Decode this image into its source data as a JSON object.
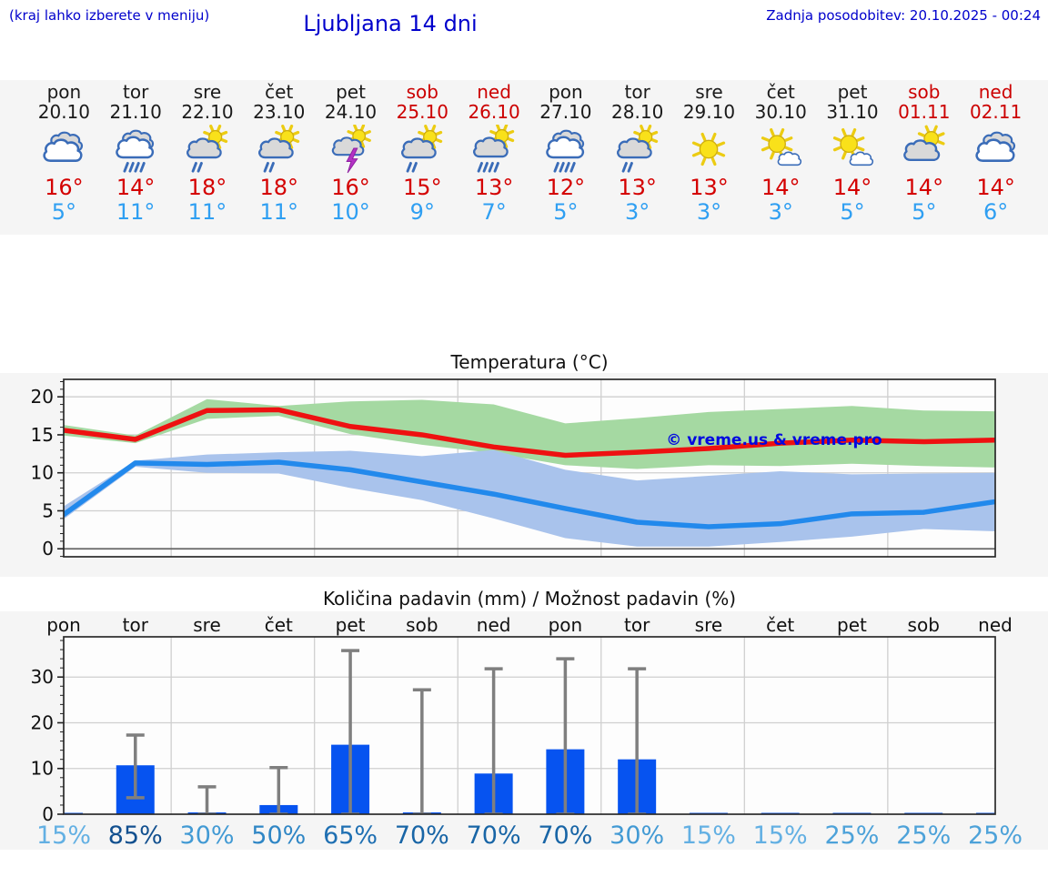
{
  "header": {
    "note_left": "(kraj lahko izberete v meniju)",
    "title": "Ljubljana 14 dni",
    "last_update": "Zadnja posodobitev: 20.10.2025 - 00:24"
  },
  "colors": {
    "header_blue": "#0000cc",
    "weekend_red": "#cc0000",
    "tmax_red": "#d40000",
    "tmin_blue": "#2f9ff2",
    "line_red": "#ee1111",
    "line_blue": "#2289ec",
    "band_green": "#a5d9a2",
    "band_blue": "#a9c3ec",
    "bar_blue": "#0653f0",
    "whisker_gray": "#7f7f7f",
    "watermark_blue": "#0008e0"
  },
  "days": [
    {
      "name": "pon",
      "date": "20.10",
      "weekend": false,
      "icon": "cloudy",
      "tmax": "16°",
      "tmin": "5°"
    },
    {
      "name": "tor",
      "date": "21.10",
      "weekend": false,
      "icon": "rain",
      "tmax": "14°",
      "tmin": "11°"
    },
    {
      "name": "sre",
      "date": "22.10",
      "weekend": false,
      "icon": "sun-cloud-light-rain",
      "tmax": "18°",
      "tmin": "11°"
    },
    {
      "name": "čet",
      "date": "23.10",
      "weekend": false,
      "icon": "sun-cloud-light-rain",
      "tmax": "18°",
      "tmin": "11°"
    },
    {
      "name": "pet",
      "date": "24.10",
      "weekend": false,
      "icon": "sun-cloud-thunder",
      "tmax": "16°",
      "tmin": "10°"
    },
    {
      "name": "sob",
      "date": "25.10",
      "weekend": true,
      "icon": "sun-cloud-light-rain",
      "tmax": "15°",
      "tmin": "9°"
    },
    {
      "name": "ned",
      "date": "26.10",
      "weekend": true,
      "icon": "sun-cloud-rain",
      "tmax": "13°",
      "tmin": "7°"
    },
    {
      "name": "pon",
      "date": "27.10",
      "weekend": false,
      "icon": "rain",
      "tmax": "12°",
      "tmin": "5°"
    },
    {
      "name": "tor",
      "date": "28.10",
      "weekend": false,
      "icon": "sun-cloud-light-rain",
      "tmax": "13°",
      "tmin": "3°"
    },
    {
      "name": "sre",
      "date": "29.10",
      "weekend": false,
      "icon": "sunny",
      "tmax": "13°",
      "tmin": "3°"
    },
    {
      "name": "čet",
      "date": "30.10",
      "weekend": false,
      "icon": "sun-small-cloud",
      "tmax": "14°",
      "tmin": "3°"
    },
    {
      "name": "pet",
      "date": "31.10",
      "weekend": false,
      "icon": "sun-small-cloud",
      "tmax": "14°",
      "tmin": "5°"
    },
    {
      "name": "sob",
      "date": "01.11",
      "weekend": true,
      "icon": "sun-cloud",
      "tmax": "14°",
      "tmin": "5°"
    },
    {
      "name": "ned",
      "date": "02.11",
      "weekend": true,
      "icon": "cloudy",
      "tmax": "14°",
      "tmin": "6°"
    }
  ],
  "chart_data": [
    {
      "type": "line",
      "title": "Temperatura (°C)",
      "watermark": "© vreme.us & vreme.pro",
      "ylabel": "",
      "ylim": [
        -1.05,
        22.3
      ],
      "yticks": [
        0,
        5,
        10,
        15,
        20
      ],
      "x_days": 14,
      "grid": true,
      "series": [
        {
          "name": "max temperature",
          "color": "#ee1111",
          "band_color": "#a5d9a2",
          "values": [
            15.6,
            14.4,
            18.2,
            18.3,
            16.1,
            15.0,
            13.4,
            12.3,
            12.7,
            13.2,
            13.9,
            14.3,
            14.1,
            14.3
          ],
          "band_hi": [
            16.3,
            14.9,
            19.7,
            18.8,
            19.4,
            19.6,
            19.0,
            16.5,
            17.2,
            18.0,
            18.4,
            18.8,
            18.2,
            18.1
          ],
          "band_lo": [
            14.9,
            13.9,
            17.1,
            17.5,
            15.1,
            13.7,
            12.6,
            11.0,
            10.5,
            11.0,
            10.9,
            11.2,
            10.9,
            10.7
          ]
        },
        {
          "name": "min temperature",
          "color": "#2289ec",
          "band_color": "#a9c3ec",
          "values": [
            4.5,
            11.3,
            11.1,
            11.4,
            10.4,
            8.8,
            7.2,
            5.3,
            3.5,
            2.9,
            3.3,
            4.6,
            4.8,
            6.2
          ],
          "band_hi": [
            5.6,
            11.6,
            12.4,
            12.7,
            12.9,
            12.2,
            13.0,
            10.4,
            9.0,
            9.6,
            10.2,
            9.8,
            9.9,
            10.0
          ],
          "band_lo": [
            3.9,
            10.8,
            10.0,
            9.9,
            8.0,
            6.4,
            4.0,
            1.4,
            0.3,
            0.3,
            0.9,
            1.6,
            2.6,
            2.3
          ]
        }
      ]
    },
    {
      "type": "bar",
      "title": "Količina padavin (mm) / Možnost padavin (%)",
      "categories": [
        "pon",
        "tor",
        "sre",
        "čet",
        "pet",
        "sob",
        "ned",
        "pon",
        "tor",
        "sre",
        "čet",
        "pet",
        "sob",
        "ned"
      ],
      "values": [
        0.1,
        10.7,
        0.4,
        2.0,
        15.2,
        0.4,
        8.9,
        14.2,
        12.0,
        0.1,
        0.1,
        0.2,
        0.2,
        0.2
      ],
      "whisker_lo": [
        null,
        3.6,
        0,
        0,
        0,
        0,
        0,
        0,
        0,
        null,
        null,
        null,
        null,
        null
      ],
      "whisker_hi": [
        null,
        17.3,
        6.0,
        10.2,
        35.8,
        27.2,
        31.8,
        34.0,
        31.8,
        null,
        null,
        null,
        null,
        null
      ],
      "prob_labels": [
        "15%",
        "85%",
        "30%",
        "50%",
        "65%",
        "70%",
        "70%",
        "70%",
        "30%",
        "15%",
        "15%",
        "25%",
        "25%",
        "25%"
      ],
      "prob_colors": [
        "#63b0e3",
        "#12508f",
        "#429ad4",
        "#2f86c5",
        "#1e6fb2",
        "#1865a6",
        "#1865a6",
        "#1865a6",
        "#429ad4",
        "#63b0e3",
        "#63b0e3",
        "#4da2d9",
        "#4da2d9",
        "#4da2d9"
      ],
      "ylim": [
        0,
        38.8
      ],
      "yticks": [
        0,
        10,
        20,
        30
      ],
      "grid": true
    }
  ]
}
